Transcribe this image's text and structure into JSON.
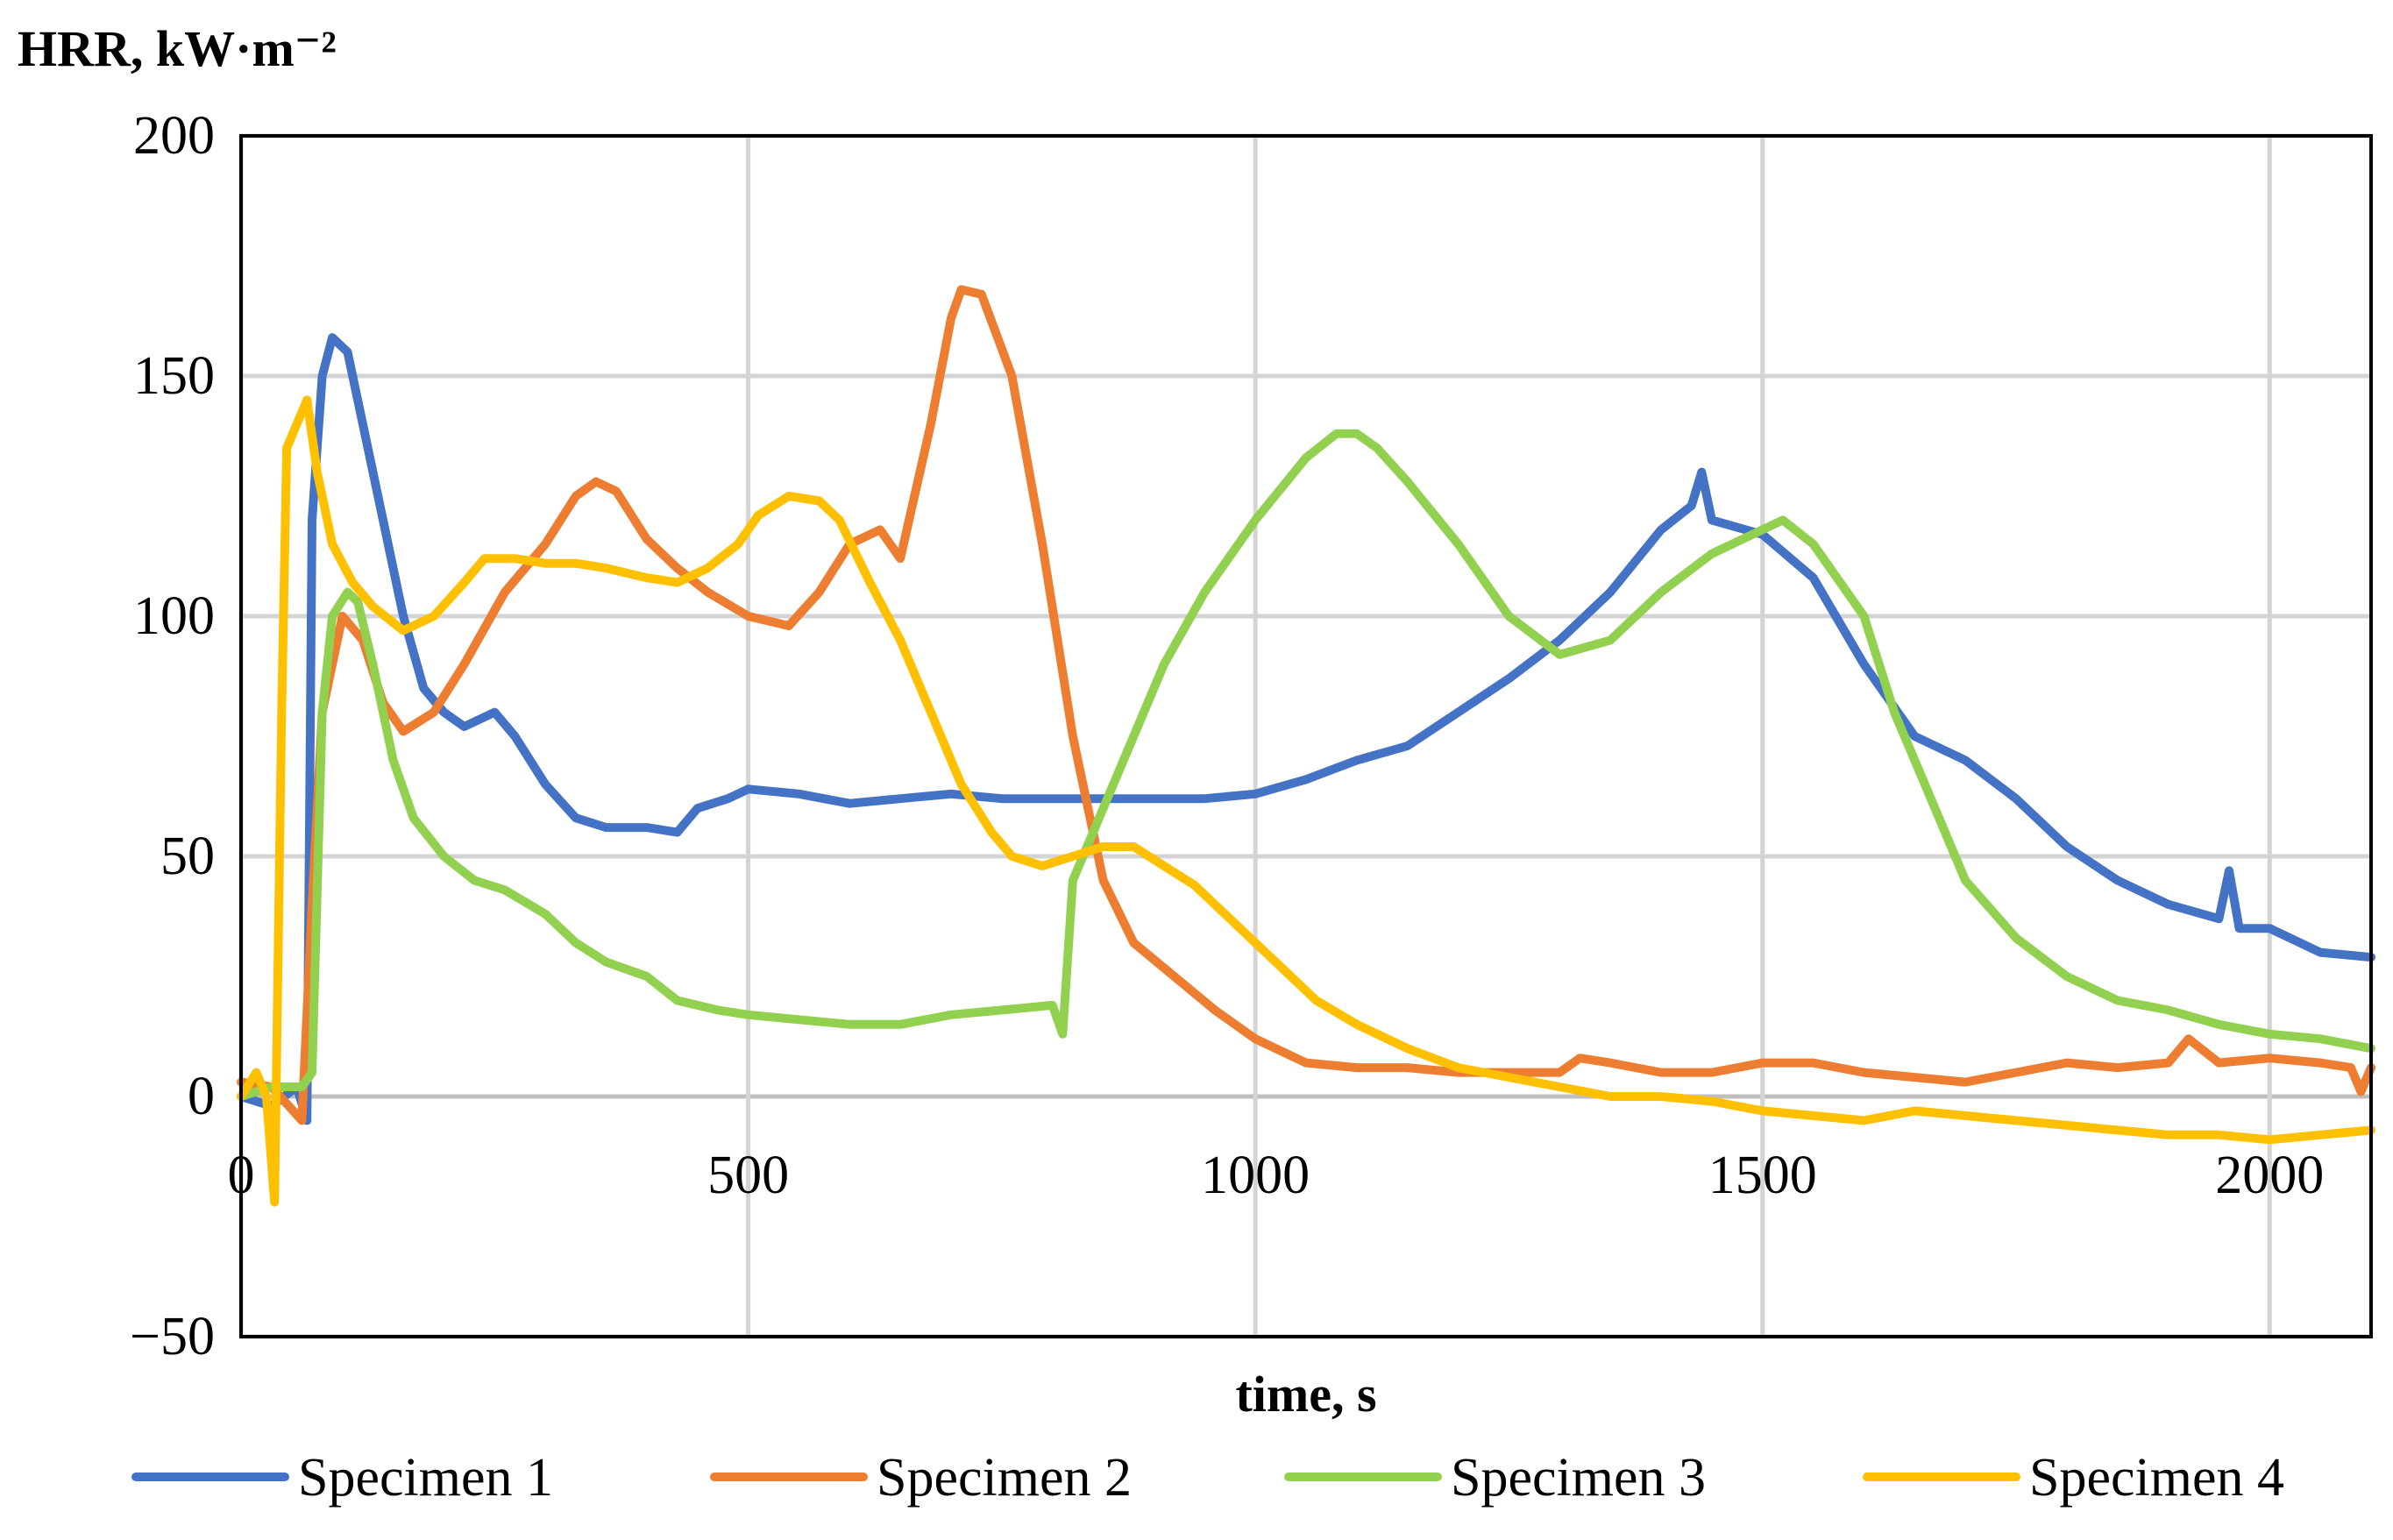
{
  "chart_data": {
    "type": "line",
    "title": "",
    "ylabel": "HRR, kW·m⁻²",
    "xlabel": "time, s",
    "xlim": [
      0,
      2100
    ],
    "ylim": [
      -50,
      200
    ],
    "x_ticks": [
      0,
      500,
      1000,
      1500,
      2000
    ],
    "y_ticks": [
      200,
      150,
      100,
      50,
      0,
      -50
    ],
    "y_tick_labels": [
      "200",
      "150",
      "100",
      "50",
      "0",
      "−50"
    ],
    "grid": true,
    "legend_position": "bottom",
    "series": [
      {
        "name": "Specimen 1",
        "color": "#4472C4",
        "points": [
          [
            0,
            0
          ],
          [
            30,
            -2
          ],
          [
            55,
            2
          ],
          [
            65,
            -5
          ],
          [
            70,
            120
          ],
          [
            80,
            150
          ],
          [
            90,
            158
          ],
          [
            105,
            155
          ],
          [
            120,
            140
          ],
          [
            140,
            120
          ],
          [
            160,
            100
          ],
          [
            180,
            85
          ],
          [
            200,
            80
          ],
          [
            220,
            77
          ],
          [
            250,
            80
          ],
          [
            270,
            75
          ],
          [
            300,
            65
          ],
          [
            330,
            58
          ],
          [
            360,
            56
          ],
          [
            400,
            56
          ],
          [
            430,
            55
          ],
          [
            450,
            60
          ],
          [
            480,
            62
          ],
          [
            500,
            64
          ],
          [
            550,
            63
          ],
          [
            600,
            61
          ],
          [
            650,
            62
          ],
          [
            700,
            63
          ],
          [
            750,
            62
          ],
          [
            800,
            62
          ],
          [
            850,
            62
          ],
          [
            900,
            62
          ],
          [
            950,
            62
          ],
          [
            1000,
            63
          ],
          [
            1050,
            66
          ],
          [
            1100,
            70
          ],
          [
            1150,
            73
          ],
          [
            1200,
            80
          ],
          [
            1250,
            87
          ],
          [
            1300,
            95
          ],
          [
            1350,
            105
          ],
          [
            1400,
            118
          ],
          [
            1430,
            123
          ],
          [
            1440,
            130
          ],
          [
            1450,
            120
          ],
          [
            1500,
            117
          ],
          [
            1550,
            108
          ],
          [
            1600,
            90
          ],
          [
            1650,
            75
          ],
          [
            1700,
            70
          ],
          [
            1750,
            62
          ],
          [
            1800,
            52
          ],
          [
            1850,
            45
          ],
          [
            1900,
            40
          ],
          [
            1950,
            37
          ],
          [
            1960,
            47
          ],
          [
            1970,
            35
          ],
          [
            2000,
            35
          ],
          [
            2050,
            30
          ],
          [
            2100,
            29
          ]
        ]
      },
      {
        "name": "Specimen 2",
        "color": "#ED7D31",
        "points": [
          [
            0,
            3
          ],
          [
            30,
            2
          ],
          [
            60,
            -5
          ],
          [
            70,
            40
          ],
          [
            80,
            80
          ],
          [
            100,
            100
          ],
          [
            120,
            95
          ],
          [
            140,
            82
          ],
          [
            160,
            76
          ],
          [
            190,
            80
          ],
          [
            220,
            90
          ],
          [
            260,
            105
          ],
          [
            300,
            115
          ],
          [
            330,
            125
          ],
          [
            350,
            128
          ],
          [
            370,
            126
          ],
          [
            400,
            116
          ],
          [
            430,
            110
          ],
          [
            460,
            105
          ],
          [
            500,
            100
          ],
          [
            540,
            98
          ],
          [
            570,
            105
          ],
          [
            600,
            115
          ],
          [
            630,
            118
          ],
          [
            650,
            112
          ],
          [
            680,
            140
          ],
          [
            700,
            162
          ],
          [
            710,
            168
          ],
          [
            730,
            167
          ],
          [
            760,
            150
          ],
          [
            790,
            115
          ],
          [
            820,
            75
          ],
          [
            850,
            45
          ],
          [
            880,
            32
          ],
          [
            920,
            25
          ],
          [
            960,
            18
          ],
          [
            1000,
            12
          ],
          [
            1050,
            7
          ],
          [
            1100,
            6
          ],
          [
            1150,
            6
          ],
          [
            1200,
            5
          ],
          [
            1250,
            5
          ],
          [
            1300,
            5
          ],
          [
            1320,
            8
          ],
          [
            1350,
            7
          ],
          [
            1400,
            5
          ],
          [
            1450,
            5
          ],
          [
            1500,
            7
          ],
          [
            1550,
            7
          ],
          [
            1600,
            5
          ],
          [
            1650,
            4
          ],
          [
            1700,
            3
          ],
          [
            1750,
            5
          ],
          [
            1800,
            7
          ],
          [
            1850,
            6
          ],
          [
            1900,
            7
          ],
          [
            1920,
            12
          ],
          [
            1950,
            7
          ],
          [
            2000,
            8
          ],
          [
            2050,
            7
          ],
          [
            2080,
            6
          ],
          [
            2090,
            1
          ],
          [
            2100,
            6
          ]
        ]
      },
      {
        "name": "Specimen 3",
        "color": "#92D050",
        "points": [
          [
            0,
            0
          ],
          [
            30,
            2
          ],
          [
            60,
            2
          ],
          [
            70,
            5
          ],
          [
            80,
            80
          ],
          [
            90,
            100
          ],
          [
            105,
            105
          ],
          [
            115,
            103
          ],
          [
            130,
            90
          ],
          [
            150,
            70
          ],
          [
            170,
            58
          ],
          [
            200,
            50
          ],
          [
            230,
            45
          ],
          [
            260,
            43
          ],
          [
            300,
            38
          ],
          [
            330,
            32
          ],
          [
            360,
            28
          ],
          [
            400,
            25
          ],
          [
            430,
            20
          ],
          [
            470,
            18
          ],
          [
            500,
            17
          ],
          [
            550,
            16
          ],
          [
            600,
            15
          ],
          [
            650,
            15
          ],
          [
            700,
            17
          ],
          [
            750,
            18
          ],
          [
            800,
            19
          ],
          [
            810,
            13
          ],
          [
            820,
            45
          ],
          [
            850,
            60
          ],
          [
            880,
            75
          ],
          [
            910,
            90
          ],
          [
            950,
            105
          ],
          [
            1000,
            120
          ],
          [
            1050,
            133
          ],
          [
            1080,
            138
          ],
          [
            1100,
            138
          ],
          [
            1120,
            135
          ],
          [
            1150,
            128
          ],
          [
            1200,
            115
          ],
          [
            1250,
            100
          ],
          [
            1300,
            92
          ],
          [
            1350,
            95
          ],
          [
            1400,
            105
          ],
          [
            1450,
            113
          ],
          [
            1500,
            118
          ],
          [
            1520,
            120
          ],
          [
            1550,
            115
          ],
          [
            1600,
            100
          ],
          [
            1630,
            80
          ],
          [
            1660,
            65
          ],
          [
            1700,
            45
          ],
          [
            1750,
            33
          ],
          [
            1800,
            25
          ],
          [
            1850,
            20
          ],
          [
            1900,
            18
          ],
          [
            1950,
            15
          ],
          [
            2000,
            13
          ],
          [
            2050,
            12
          ],
          [
            2100,
            10
          ]
        ]
      },
      {
        "name": "Specimen 4",
        "color": "#FFC000",
        "points": [
          [
            0,
            0
          ],
          [
            15,
            5
          ],
          [
            25,
            0
          ],
          [
            33,
            -22
          ],
          [
            40,
            80
          ],
          [
            45,
            135
          ],
          [
            55,
            140
          ],
          [
            65,
            145
          ],
          [
            75,
            130
          ],
          [
            90,
            115
          ],
          [
            110,
            107
          ],
          [
            130,
            102
          ],
          [
            160,
            97
          ],
          [
            190,
            100
          ],
          [
            220,
            107
          ],
          [
            240,
            112
          ],
          [
            270,
            112
          ],
          [
            300,
            111
          ],
          [
            330,
            111
          ],
          [
            360,
            110
          ],
          [
            400,
            108
          ],
          [
            430,
            107
          ],
          [
            460,
            110
          ],
          [
            490,
            115
          ],
          [
            510,
            121
          ],
          [
            540,
            125
          ],
          [
            570,
            124
          ],
          [
            590,
            120
          ],
          [
            620,
            107
          ],
          [
            650,
            95
          ],
          [
            680,
            80
          ],
          [
            710,
            65
          ],
          [
            740,
            55
          ],
          [
            760,
            50
          ],
          [
            790,
            48
          ],
          [
            820,
            50
          ],
          [
            850,
            52
          ],
          [
            880,
            52
          ],
          [
            910,
            48
          ],
          [
            940,
            44
          ],
          [
            970,
            38
          ],
          [
            1000,
            32
          ],
          [
            1030,
            26
          ],
          [
            1060,
            20
          ],
          [
            1100,
            15
          ],
          [
            1150,
            10
          ],
          [
            1200,
            6
          ],
          [
            1250,
            4
          ],
          [
            1300,
            2
          ],
          [
            1350,
            0
          ],
          [
            1400,
            0
          ],
          [
            1450,
            -1
          ],
          [
            1500,
            -3
          ],
          [
            1550,
            -4
          ],
          [
            1600,
            -5
          ],
          [
            1650,
            -3
          ],
          [
            1700,
            -4
          ],
          [
            1750,
            -5
          ],
          [
            1800,
            -6
          ],
          [
            1850,
            -7
          ],
          [
            1900,
            -8
          ],
          [
            1950,
            -8
          ],
          [
            2000,
            -9
          ],
          [
            2050,
            -8
          ],
          [
            2100,
            -7
          ]
        ]
      }
    ]
  }
}
